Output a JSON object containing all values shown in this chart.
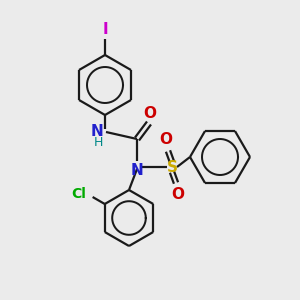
{
  "background_color": "#ebebeb",
  "bond_color": "#1a1a1a",
  "atom_colors": {
    "I": "#cc00cc",
    "N_amide": "#2020cc",
    "H": "#008888",
    "O": "#cc0000",
    "S": "#ccaa00",
    "N_sulfonyl": "#2020cc",
    "Cl": "#00aa00"
  },
  "figsize": [
    3.0,
    3.0
  ],
  "dpi": 100
}
